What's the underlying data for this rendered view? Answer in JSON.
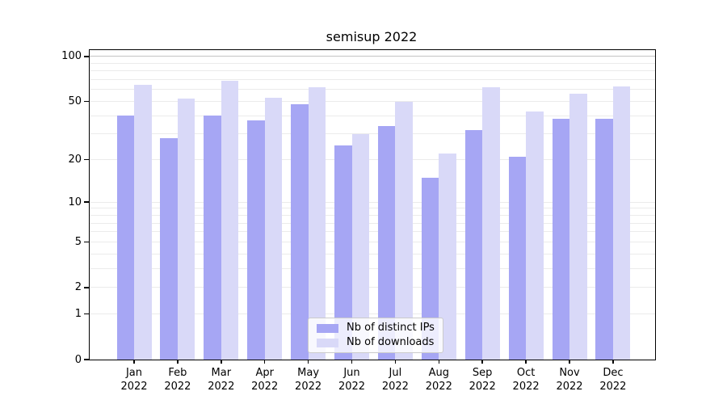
{
  "chart_data": {
    "type": "bar",
    "title": "semisup 2022",
    "categories": [
      "Jan",
      "Feb",
      "Mar",
      "Apr",
      "May",
      "Jun",
      "Jul",
      "Aug",
      "Sep",
      "Oct",
      "Nov",
      "Dec"
    ],
    "year": "2022",
    "series": [
      {
        "name": "Nb of distinct IPs",
        "color": "#a6a6f4",
        "values": [
          40,
          28,
          40,
          37,
          48,
          25,
          34,
          15,
          32,
          21,
          38,
          38
        ]
      },
      {
        "name": "Nb of downloads",
        "color": "#d9d9f8",
        "values": [
          65,
          52,
          69,
          53,
          62,
          30,
          50,
          22,
          62,
          43,
          56,
          63
        ]
      }
    ],
    "xlabel": "",
    "ylabel": "",
    "yscale": "symlog",
    "ylim": [
      0,
      110
    ],
    "yticks": [
      100,
      50,
      20,
      10,
      5,
      2,
      1,
      0
    ],
    "minor_gridline_values": [
      3,
      4,
      6,
      7,
      8,
      9,
      30,
      40,
      60,
      70,
      80,
      90
    ],
    "major_gridline_values": [
      1,
      2,
      5,
      10,
      20,
      50,
      100
    ],
    "grid": "horizontal",
    "grid_color": "#ebebeb",
    "grid_color_100": "#c4c4c4",
    "axis_color": "#000000",
    "legend_position": "lower center inside axes"
  }
}
